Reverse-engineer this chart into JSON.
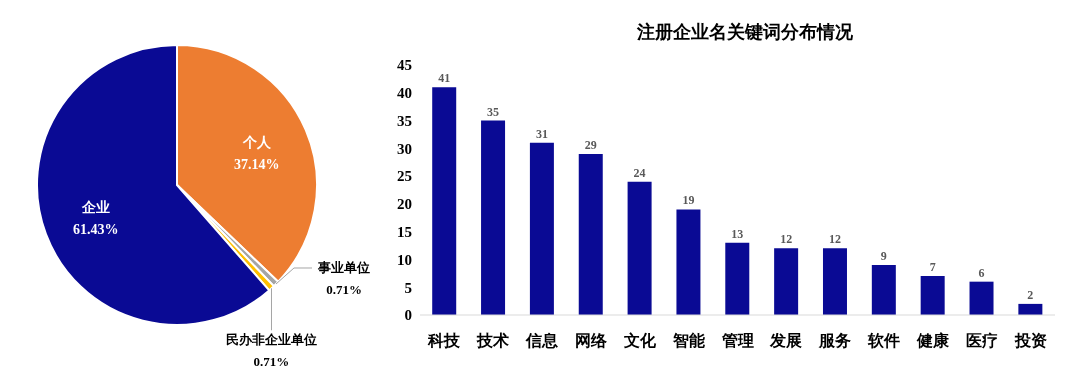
{
  "chart_data": [
    {
      "type": "pie",
      "categories": [
        "个人",
        "事业单位",
        "民办非企业单位",
        "企业"
      ],
      "values": [
        37.14,
        0.71,
        0.71,
        61.43
      ],
      "colors": [
        "#ed7d31",
        "#a5a5a5",
        "#ffc000",
        "#0a0a94"
      ],
      "value_labels": [
        "37.14%",
        "0.71%",
        "0.71%",
        "61.43%"
      ]
    },
    {
      "type": "bar",
      "title": "注册企业名关键词分布情况",
      "categories": [
        "科技",
        "技术",
        "信息",
        "网络",
        "文化",
        "智能",
        "管理",
        "发展",
        "服务",
        "软件",
        "健康",
        "医疗",
        "投资"
      ],
      "values": [
        41,
        35,
        31,
        29,
        24,
        19,
        13,
        12,
        12,
        9,
        7,
        6,
        2
      ],
      "color": "#0a0a94",
      "ylim": [
        0,
        45
      ],
      "yticks": [
        0,
        5,
        10,
        15,
        20,
        25,
        30,
        35,
        40,
        45
      ],
      "data_labels": true,
      "grid": false
    }
  ]
}
